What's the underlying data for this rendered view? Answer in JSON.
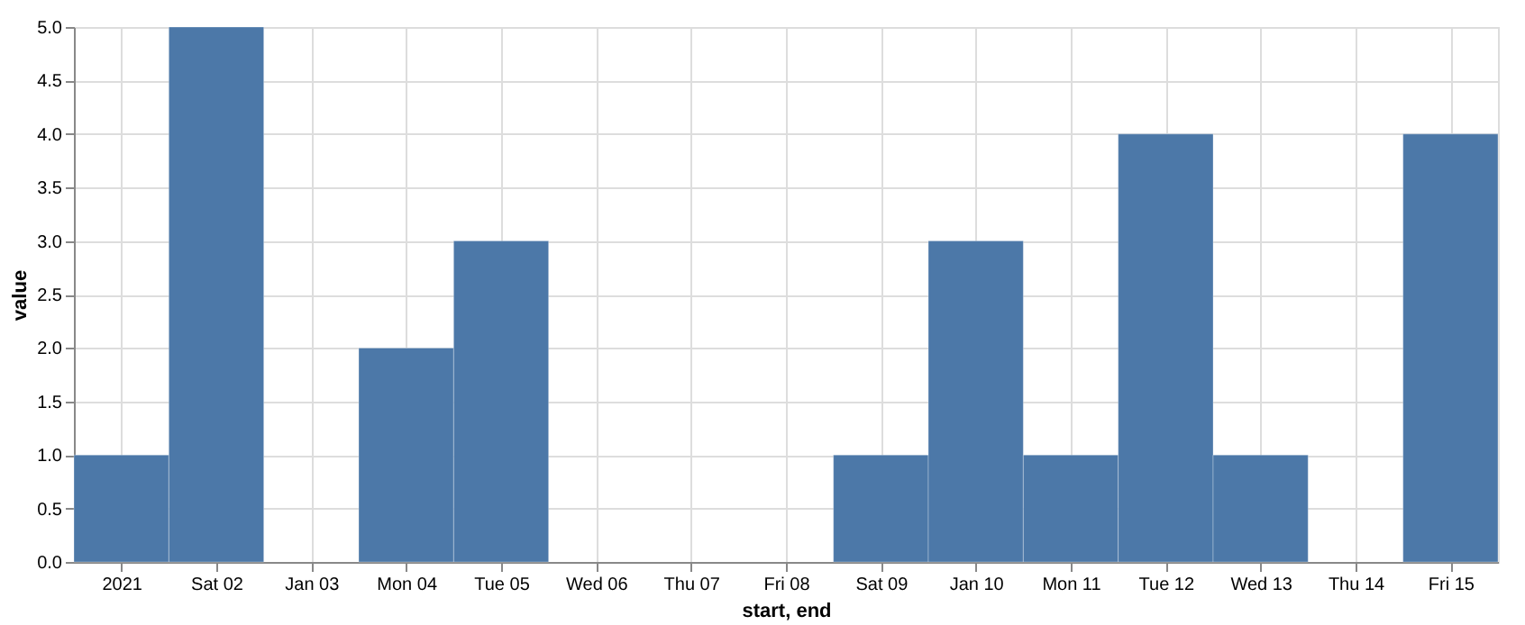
{
  "chart_data": {
    "type": "bar",
    "xlabel": "start, end",
    "ylabel": "value",
    "x": [
      "2021-01-01",
      "2021-01-02",
      "2021-01-03",
      "2021-01-04",
      "2021-01-05",
      "2021-01-06",
      "2021-01-07",
      "2021-01-08",
      "2021-01-09",
      "2021-01-10",
      "2021-01-11",
      "2021-01-12",
      "2021-01-13",
      "2021-01-14",
      "2021-01-15"
    ],
    "values": [
      1,
      5,
      null,
      2,
      3,
      null,
      null,
      null,
      1,
      3,
      1,
      4,
      1,
      null,
      4
    ],
    "color": "#4c78a8",
    "xlim": [
      "2020-12-31T12:00",
      "2021-01-15T12:00"
    ],
    "xticks": [
      {
        "value": "2021-01-01",
        "label": "2021"
      },
      {
        "value": "2021-01-02",
        "label": "Sat 02"
      },
      {
        "value": "2021-01-03",
        "label": "Jan 03"
      },
      {
        "value": "2021-01-04",
        "label": "Mon 04"
      },
      {
        "value": "2021-01-05",
        "label": "Tue 05"
      },
      {
        "value": "2021-01-06",
        "label": "Wed 06"
      },
      {
        "value": "2021-01-07",
        "label": "Thu 07"
      },
      {
        "value": "2021-01-08",
        "label": "Fri 08"
      },
      {
        "value": "2021-01-09",
        "label": "Sat 09"
      },
      {
        "value": "2021-01-10",
        "label": "Jan 10"
      },
      {
        "value": "2021-01-11",
        "label": "Mon 11"
      },
      {
        "value": "2021-01-12",
        "label": "Tue 12"
      },
      {
        "value": "2021-01-13",
        "label": "Wed 13"
      },
      {
        "value": "2021-01-14",
        "label": "Thu 14"
      },
      {
        "value": "2021-01-15",
        "label": "Fri 15"
      }
    ],
    "ylim": [
      0,
      5
    ],
    "yticks": [
      {
        "value": 0,
        "label": "0.0"
      },
      {
        "value": 0.5,
        "label": "0.5"
      },
      {
        "value": 1,
        "label": "1.0"
      },
      {
        "value": 1.5,
        "label": "1.5"
      },
      {
        "value": 2,
        "label": "2.0"
      },
      {
        "value": 2.5,
        "label": "2.5"
      },
      {
        "value": 3,
        "label": "3.0"
      },
      {
        "value": 3.5,
        "label": "3.5"
      },
      {
        "value": 4,
        "label": "4.0"
      },
      {
        "value": 4.5,
        "label": "4.5"
      },
      {
        "value": 5,
        "label": "5.0"
      }
    ],
    "grid": true
  }
}
